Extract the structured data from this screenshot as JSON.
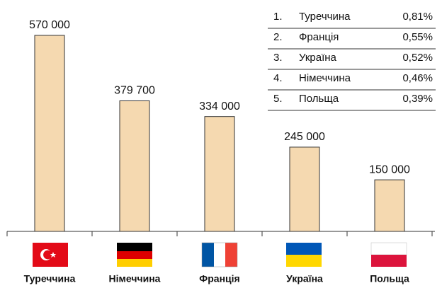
{
  "chart_data": {
    "type": "bar",
    "categories": [
      "Туреччина",
      "Німеччина",
      "Франція",
      "Україна",
      "Польща"
    ],
    "values": [
      570000,
      379700,
      334000,
      245000,
      150000
    ],
    "value_labels": [
      "570 000",
      "379 700",
      "334 000",
      "245 000",
      "150 000"
    ],
    "color": "#f5d9b0",
    "ylim": [
      0,
      600000
    ]
  },
  "table": {
    "rows": [
      [
        "1.",
        "Туреччина",
        "0,81%"
      ],
      [
        "2.",
        "Франція",
        "0,55%"
      ],
      [
        "3.",
        "Україна",
        "0,52%"
      ],
      [
        "4.",
        "Німеччина",
        "0,46%"
      ],
      [
        "5.",
        "Польща",
        "0,39%"
      ]
    ]
  }
}
